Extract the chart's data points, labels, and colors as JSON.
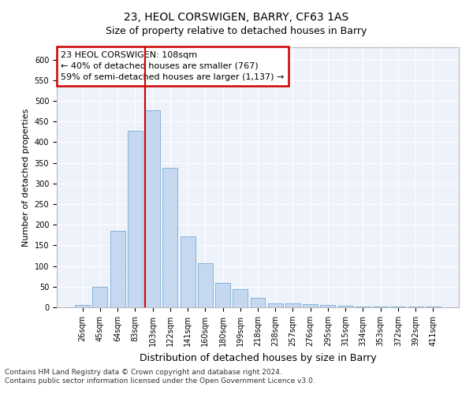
{
  "title1": "23, HEOL CORSWIGEN, BARRY, CF63 1AS",
  "title2": "Size of property relative to detached houses in Barry",
  "xlabel": "Distribution of detached houses by size in Barry",
  "ylabel": "Number of detached properties",
  "categories": [
    "26sqm",
    "45sqm",
    "64sqm",
    "83sqm",
    "103sqm",
    "122sqm",
    "141sqm",
    "160sqm",
    "180sqm",
    "199sqm",
    "218sqm",
    "238sqm",
    "257sqm",
    "276sqm",
    "295sqm",
    "315sqm",
    "334sqm",
    "353sqm",
    "372sqm",
    "392sqm",
    "411sqm"
  ],
  "values": [
    5,
    50,
    185,
    428,
    477,
    337,
    172,
    107,
    60,
    44,
    22,
    10,
    10,
    8,
    5,
    3,
    2,
    2,
    1,
    1,
    2
  ],
  "bar_color": "#c5d8f0",
  "bar_edge_color": "#7aadd4",
  "highlight_index": 4,
  "highlight_line_color": "#cc0000",
  "ylim": [
    0,
    630
  ],
  "yticks": [
    0,
    50,
    100,
    150,
    200,
    250,
    300,
    350,
    400,
    450,
    500,
    550,
    600
  ],
  "annotation_text1": "23 HEOL CORSWIGEN: 108sqm",
  "annotation_text2": "← 40% of detached houses are smaller (767)",
  "annotation_text3": "59% of semi-detached houses are larger (1,137) →",
  "annotation_box_facecolor": "#ffffff",
  "annotation_box_edge": "#cc0000",
  "footnote1": "Contains HM Land Registry data © Crown copyright and database right 2024.",
  "footnote2": "Contains public sector information licensed under the Open Government Licence v3.0.",
  "background_color": "#ffffff",
  "plot_background": "#eef2fa",
  "grid_color": "#ffffff",
  "title1_fontsize": 10,
  "title2_fontsize": 9,
  "ylabel_fontsize": 8,
  "xlabel_fontsize": 9,
  "tick_fontsize": 7,
  "annot_fontsize": 8,
  "footnote_fontsize": 6.5
}
